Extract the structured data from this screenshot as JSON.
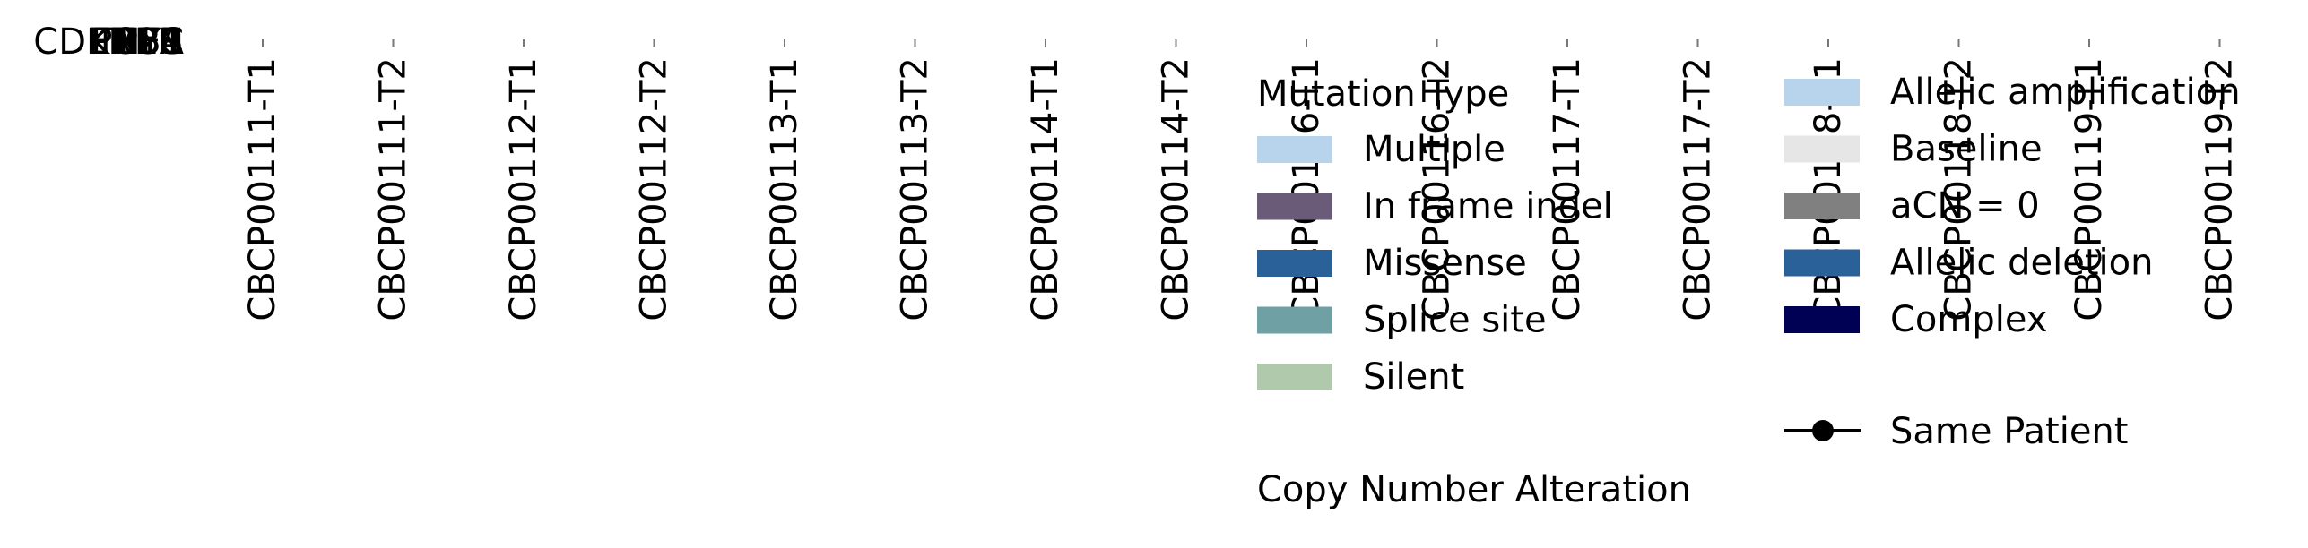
{
  "chart_data": {
    "type": "heatmap",
    "row_labels": [
      "CDKN2A",
      "TP53",
      "PTEN",
      "NF1",
      "RB1",
      "EGFR",
      "MYC"
    ],
    "columns": [
      "CBCP00111-T1",
      "CBCP00111-T2",
      "CBCP00112-T1",
      "CBCP00112-T2",
      "CBCP00113-T1",
      "CBCP00113-T2",
      "CBCP00114-T1",
      "CBCP00114-T2",
      "CBCP00116-T1",
      "CBCP00116-T2",
      "CBCP00117-T1",
      "CBCP00117-T2",
      "CBCP00118-T1",
      "CBCP00118-T2",
      "CBCP00119-T1",
      "CBCP00119-T2"
    ],
    "legend_mutation": {
      "title": "Mutation Type",
      "items": [
        {
          "label": "Multiple",
          "color": "#b8d4ec"
        },
        {
          "label": "In frame indel",
          "color": "#6a5b78"
        },
        {
          "label": "Missense",
          "color": "#2a6199"
        },
        {
          "label": "Splice site",
          "color": "#6fa1a4"
        },
        {
          "label": "Silent",
          "color": "#b0c9ad"
        }
      ]
    },
    "legend_cna": {
      "title": "Copy Number Alteration",
      "items": [
        {
          "label": "Allelic amplification",
          "color": "#b8d4ec"
        },
        {
          "label": "Baseline",
          "color": "#e6e6e6"
        },
        {
          "label": "aCN = 0",
          "color": "#808080"
        },
        {
          "label": "Allelic deletion",
          "color": "#2a6199"
        },
        {
          "label": "Complex",
          "color": "#000055"
        }
      ]
    },
    "legend_patient": {
      "label": "Same Patient"
    }
  }
}
